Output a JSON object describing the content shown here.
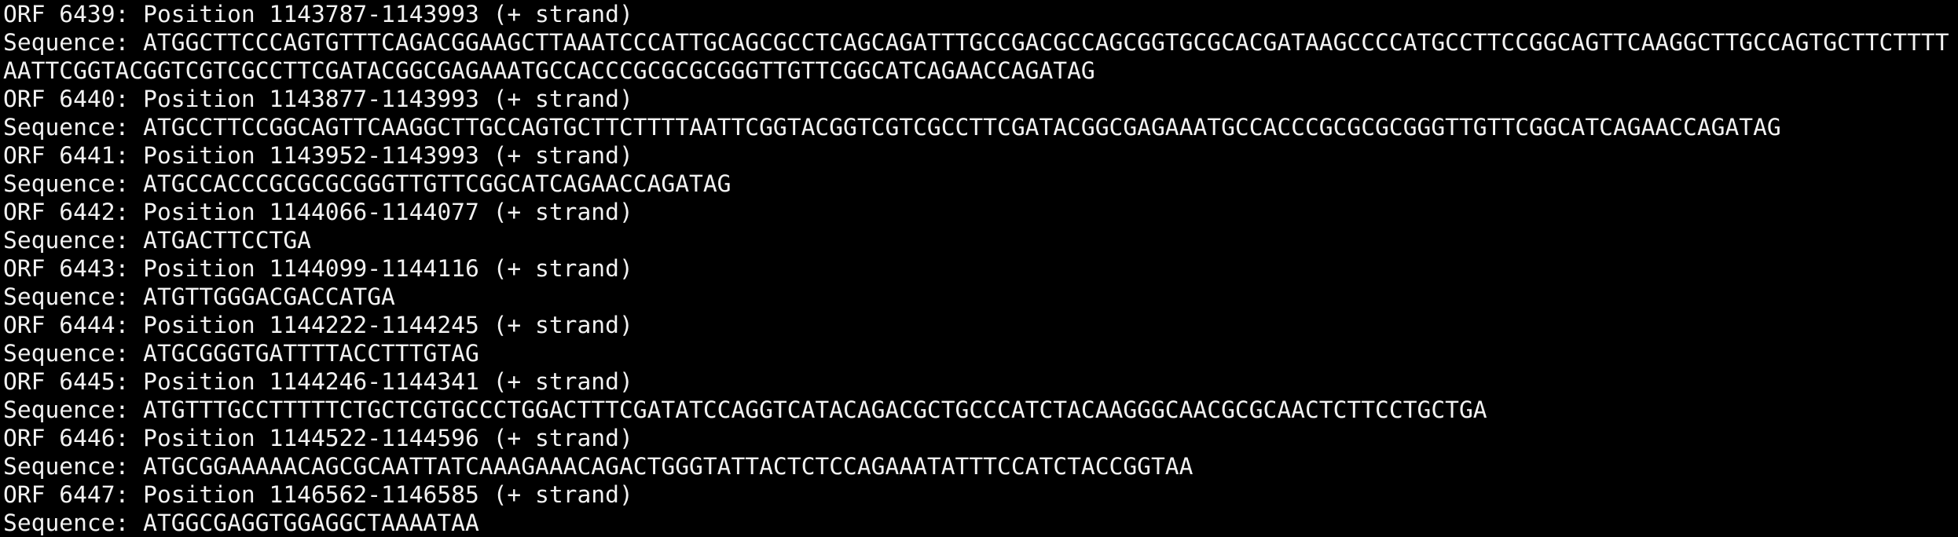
{
  "orfs": [
    {
      "header": "ORF 6439: Position 1143787-1143993 (+ strand)",
      "sequence": "Sequence: ATGGCTTCCCAGTGTTTCAGACGGAAGCTTAAATCCCATTGCAGCGCCTCAGCAGATTTGCCGACGCCAGCGGTGCGCACGATAAGCCCCATGCCTTCCGGCAGTTCAAGGCTTGCCAGTGCTTCTTTTAATTCGGTACGGTCGTCGCCTTCGATACGGCGAGAAATGCCACCCGCGCGCGGGTTGTTCGGCATCAGAACCAGATAG"
    },
    {
      "header": "ORF 6440: Position 1143877-1143993 (+ strand)",
      "sequence": "Sequence: ATGCCTTCCGGCAGTTCAAGGCTTGCCAGTGCTTCTTTTAATTCGGTACGGTCGTCGCCTTCGATACGGCGAGAAATGCCACCCGCGCGCGGGTTGTTCGGCATCAGAACCAGATAG"
    },
    {
      "header": "ORF 6441: Position 1143952-1143993 (+ strand)",
      "sequence": "Sequence: ATGCCACCCGCGCGCGGGTTGTTCGGCATCAGAACCAGATAG"
    },
    {
      "header": "ORF 6442: Position 1144066-1144077 (+ strand)",
      "sequence": "Sequence: ATGACTTCCTGA"
    },
    {
      "header": "ORF 6443: Position 1144099-1144116 (+ strand)",
      "sequence": "Sequence: ATGTTGGGACGACCATGA"
    },
    {
      "header": "ORF 6444: Position 1144222-1144245 (+ strand)",
      "sequence": "Sequence: ATGCGGGTGATTTTACCTTTGTAG"
    },
    {
      "header": "ORF 6445: Position 1144246-1144341 (+ strand)",
      "sequence": "Sequence: ATGTTTGCCTTTTTCTGCTCGTGCCCTGGACTTTCGATATCCAGGTCATACAGACGCTGCCCATCTACAAGGGCAACGCGCAACTCTTCCTGCTGA"
    },
    {
      "header": "ORF 6446: Position 1144522-1144596 (+ strand)",
      "sequence": "Sequence: ATGCGGAAAAACAGCGCAATTATCAAAGAAACAGACTGGGTATTACTCTCCAGAAATATTTCCATCTACCGGTAA"
    },
    {
      "header": "ORF 6447: Position 1146562-1146585 (+ strand)",
      "sequence": "Sequence: ATGGCGAGGTGGAGGCTAAAATAA"
    }
  ]
}
